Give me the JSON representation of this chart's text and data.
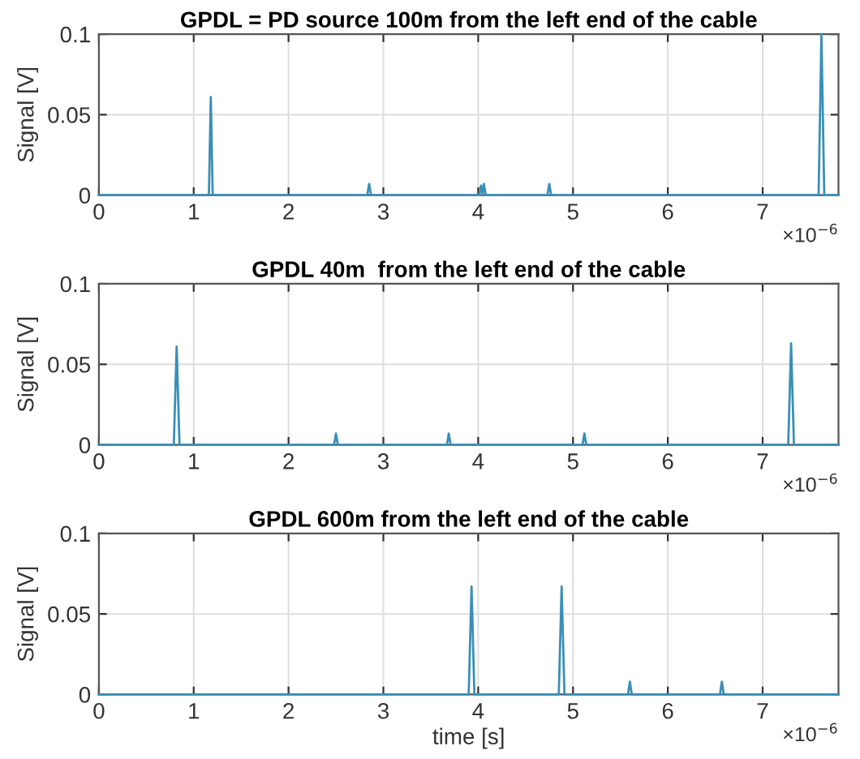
{
  "chart_data": [
    {
      "type": "line",
      "title": "GPDL = PD source 100m from the left end of the cable",
      "ylabel": "Signal [V]",
      "annotations": [
        "×10$^{−6}$"
      ],
      "x": [
        0,
        1.16,
        1.18,
        1.2,
        2.83,
        2.85,
        2.87,
        4.01,
        4.03,
        4.045,
        4.06,
        4.08,
        4.73,
        4.75,
        4.77,
        7.59,
        7.62,
        7.65,
        7.8
      ],
      "series": [
        {
          "color": "#3a8fb7",
          "values": [
            0,
            0,
            0.061,
            0,
            0,
            0.007,
            0,
            0,
            0.006,
            0,
            0.007,
            0,
            0,
            0.007,
            0,
            0,
            0.1,
            0,
            0
          ]
        }
      ],
      "xlim": [
        0,
        7.8
      ],
      "xticks": [
        0,
        1,
        2,
        3,
        4,
        5,
        6,
        7
      ],
      "ylim": [
        0,
        0.1
      ],
      "yticks": [
        0,
        0.05,
        0.1
      ],
      "grid": true
    },
    {
      "type": "line",
      "title": "GPDL 40m  from the left end of the cable",
      "ylabel": "Signal [V]",
      "annotations": [
        "×10$^{−6}$"
      ],
      "x": [
        0,
        0.79,
        0.82,
        0.85,
        2.48,
        2.5,
        2.52,
        3.67,
        3.69,
        3.71,
        5.1,
        5.12,
        5.14,
        7.27,
        7.3,
        7.33,
        7.8
      ],
      "series": [
        {
          "color": "#3a8fb7",
          "values": [
            0,
            0,
            0.061,
            0,
            0,
            0.007,
            0,
            0,
            0.007,
            0,
            0,
            0.007,
            0,
            0,
            0.063,
            0,
            0
          ]
        }
      ],
      "xlim": [
        0,
        7.8
      ],
      "xticks": [
        0,
        1,
        2,
        3,
        4,
        5,
        6,
        7
      ],
      "ylim": [
        0,
        0.1
      ],
      "yticks": [
        0,
        0.05,
        0.1
      ],
      "grid": true
    },
    {
      "type": "line",
      "title": "GPDL 600m from the left end of the cable",
      "xlabel": "time [s]",
      "ylabel": "Signal [V]",
      "annotations": [
        "×10$^{−6}$"
      ],
      "x": [
        0,
        3.9,
        3.93,
        3.96,
        4.85,
        4.88,
        4.91,
        5.58,
        5.6,
        5.62,
        6.55,
        6.57,
        6.59,
        7.8
      ],
      "series": [
        {
          "color": "#3a8fb7",
          "values": [
            0,
            0,
            0.067,
            0,
            0,
            0.067,
            0,
            0,
            0.008,
            0,
            0,
            0.008,
            0,
            0
          ]
        }
      ],
      "xlim": [
        0,
        7.8
      ],
      "xticks": [
        0,
        1,
        2,
        3,
        4,
        5,
        6,
        7
      ],
      "ylim": [
        0,
        0.1
      ],
      "yticks": [
        0,
        0.05,
        0.1
      ],
      "grid": true
    }
  ]
}
